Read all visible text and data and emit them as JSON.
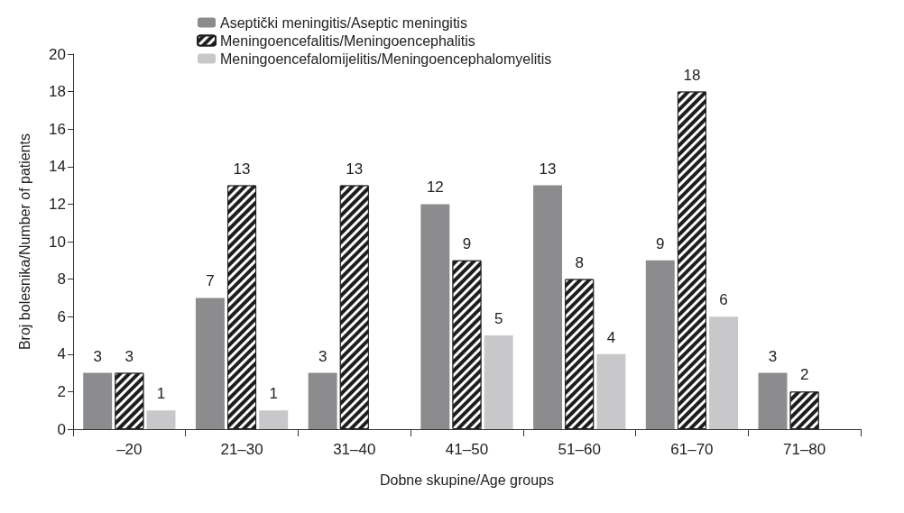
{
  "chart_data": {
    "type": "bar",
    "xlabel": "Dobne skupine/Age groups",
    "ylabel": "Broj bolesnika/Number of patients",
    "categories": [
      "–20",
      "21–30",
      "31–40",
      "41–50",
      "51–60",
      "61–70",
      "71–80"
    ],
    "series": [
      {
        "name": "Aseptički meningitis/Aseptic meningitis",
        "color": "#8c8c8e",
        "values": [
          3,
          7,
          3,
          12,
          13,
          9,
          3
        ]
      },
      {
        "name": "Meningoencefalitis/Meningoencephalitis",
        "color": "#1e1e1e",
        "values": [
          3,
          13,
          13,
          9,
          8,
          18,
          2
        ]
      },
      {
        "name": "Meningoencefalomijelitis/Meningoencephalomyelitis",
        "color": "#c8c8ca",
        "values": [
          1,
          1,
          null,
          5,
          4,
          6,
          null
        ]
      }
    ],
    "ylim": [
      0,
      20
    ],
    "yticks": [
      0,
      2,
      4,
      6,
      8,
      10,
      12,
      14,
      16,
      18,
      20
    ],
    "grid": false,
    "legend": "top left",
    "data_labels": true
  }
}
